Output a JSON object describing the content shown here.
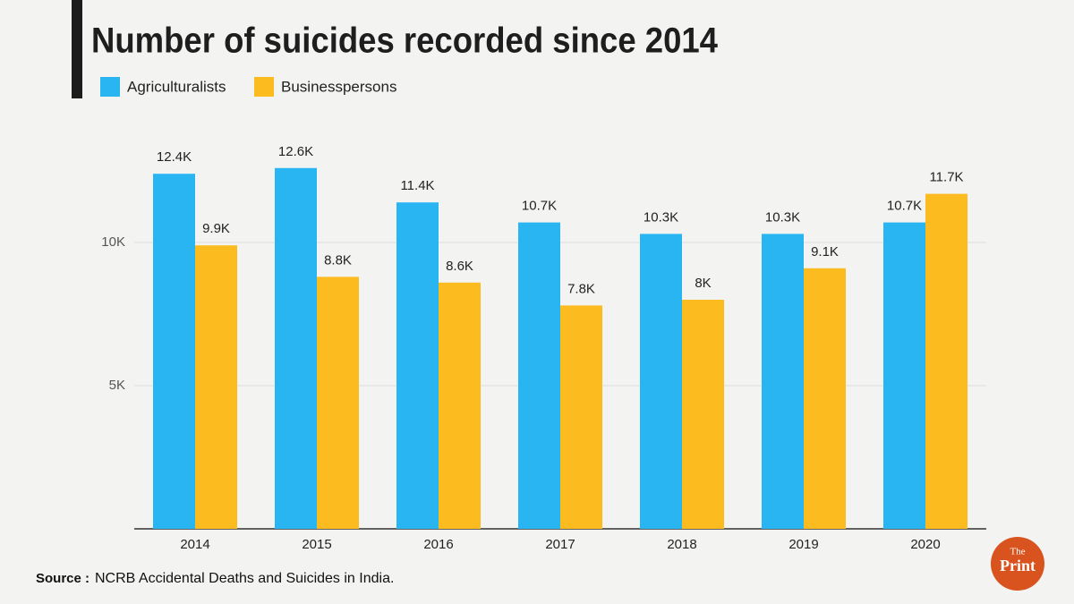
{
  "chart_data": {
    "type": "bar",
    "title": "Number of suicides recorded since 2014",
    "categories": [
      "2014",
      "2015",
      "2016",
      "2017",
      "2018",
      "2019",
      "2020"
    ],
    "series": [
      {
        "name": "Agriculturalists",
        "color": "#29b5f2",
        "values": [
          12400,
          12600,
          11400,
          10700,
          10300,
          10300,
          10700
        ],
        "value_labels": [
          "12.4K",
          "12.6K",
          "11.4K",
          "10.7K",
          "10.3K",
          "10.3K",
          "10.7K"
        ]
      },
      {
        "name": "Businesspersons",
        "color": "#fcbb1e",
        "values": [
          9900,
          8800,
          8600,
          7800,
          8000,
          9100,
          11700
        ],
        "value_labels": [
          "9.9K",
          "8.8K",
          "8.6K",
          "7.8K",
          "8K",
          "9.1K",
          "11.7K"
        ]
      }
    ],
    "ylim": [
      0,
      13000
    ],
    "yticks": [
      {
        "value": 5000,
        "label": "5K"
      },
      {
        "value": 10000,
        "label": "10K"
      }
    ],
    "grid": true,
    "source_label": "Source :",
    "source": "NCRB Accidental Deaths and Suicides in India.",
    "logo": {
      "top": "The",
      "bottom": "Print"
    }
  }
}
